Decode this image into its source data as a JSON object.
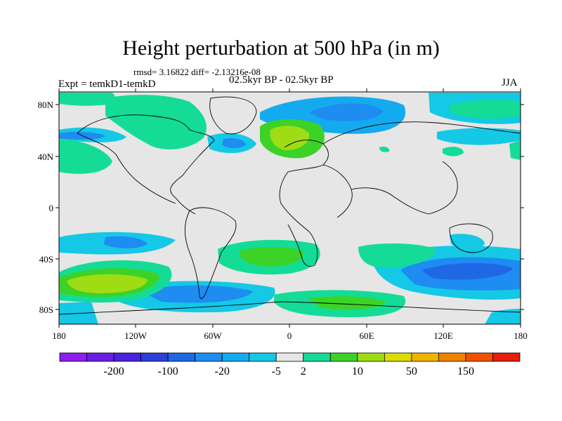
{
  "title": "Height perturbation at 500 hPa (in m)",
  "stats_line": "rmsd= 3.16822 diff= -2.13216e-08",
  "experiment": "Expt = temkD1-temkD",
  "period": "02.5kyr BP - 02.5kyr BP",
  "season": "JJA",
  "lat_ticks": [
    "80N",
    "40N",
    "0",
    "40S",
    "80S"
  ],
  "lon_ticks": [
    "180",
    "120W",
    "60W",
    "0",
    "60E",
    "120E",
    "180"
  ],
  "colorbar": {
    "colors": [
      "#8c1ef0",
      "#6a1ee6",
      "#4a22dc",
      "#2e3ed8",
      "#1e68e6",
      "#1e8cf0",
      "#14aaf0",
      "#14c8e6",
      "#e6e6e6",
      "#14dc96",
      "#3cd228",
      "#a0dc14",
      "#dcdc00",
      "#f0b400",
      "#f08200",
      "#f05000",
      "#e61e0a"
    ],
    "labels": [
      "-200",
      "-100",
      "-20",
      "-5",
      "2",
      "10",
      "50",
      "150"
    ]
  },
  "icons": {
    "contour_fill": "filled-contour-map",
    "coastlines": "coastline-outline"
  }
}
